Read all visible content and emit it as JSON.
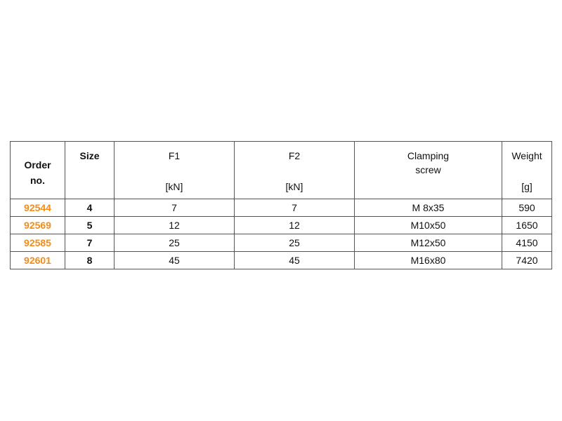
{
  "table": {
    "headers": [
      {
        "label": "Order no.",
        "unit": ""
      },
      {
        "label": "Size",
        "unit": ""
      },
      {
        "label": "F1",
        "unit": "[kN]"
      },
      {
        "label": "F2",
        "unit": "[kN]"
      },
      {
        "label": "Clamping screw",
        "unit": ""
      },
      {
        "label": "Weight",
        "unit": "[g]"
      }
    ],
    "rows": [
      [
        "92544",
        "4",
        "7",
        "7",
        "M 8x35",
        "590"
      ],
      [
        "92569",
        "5",
        "12",
        "12",
        "M10x50",
        "1650"
      ],
      [
        "92585",
        "7",
        "25",
        "25",
        "M12x50",
        "4150"
      ],
      [
        "92601",
        "8",
        "45",
        "45",
        "M16x80",
        "7420"
      ]
    ],
    "accent_color": "#f28c1a"
  }
}
